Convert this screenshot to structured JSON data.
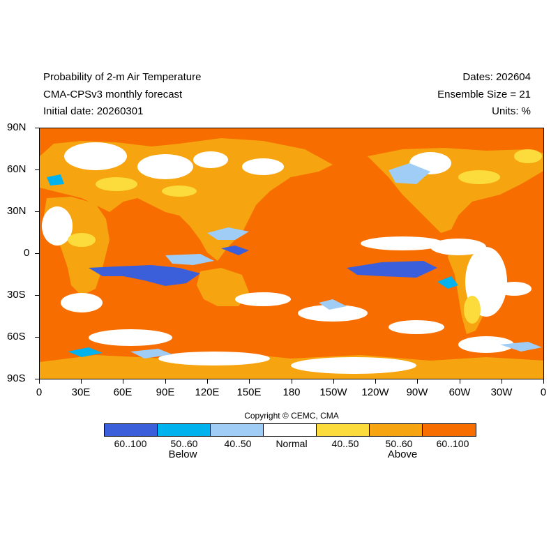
{
  "header": {
    "title": "Probability of 2-m Air Temperature",
    "model": "CMA-CPSv3 monthly forecast",
    "initial_date": "Initial date: 20260301",
    "dates": "Dates: 202604",
    "ensemble": "Ensemble Size = 21",
    "units": "Units: %"
  },
  "map": {
    "lat_labels": [
      "90N",
      "60N",
      "30N",
      "0",
      "30S",
      "60S",
      "90S"
    ],
    "lon_labels": [
      "0",
      "30E",
      "60E",
      "90E",
      "120E",
      "150E",
      "180",
      "150W",
      "120W",
      "90W",
      "60W",
      "30W",
      "0"
    ],
    "background_category": "above-60-100",
    "dominant_color": "#f76d00"
  },
  "copyright": "Copyright © CEMC, CMA",
  "legend": {
    "items": [
      {
        "label": "60..100",
        "color": "#3b5fdb"
      },
      {
        "label": "50..60",
        "color": "#00b2ee"
      },
      {
        "label": "40..50",
        "color": "#9fcdf6"
      },
      {
        "label": "Normal",
        "color": "#ffffff"
      },
      {
        "label": "40..50",
        "color": "#fbdc3c"
      },
      {
        "label": "50..60",
        "color": "#f6a40f"
      },
      {
        "label": "60..100",
        "color": "#f76d00"
      }
    ],
    "below_label": "Below",
    "above_label": "Above"
  }
}
